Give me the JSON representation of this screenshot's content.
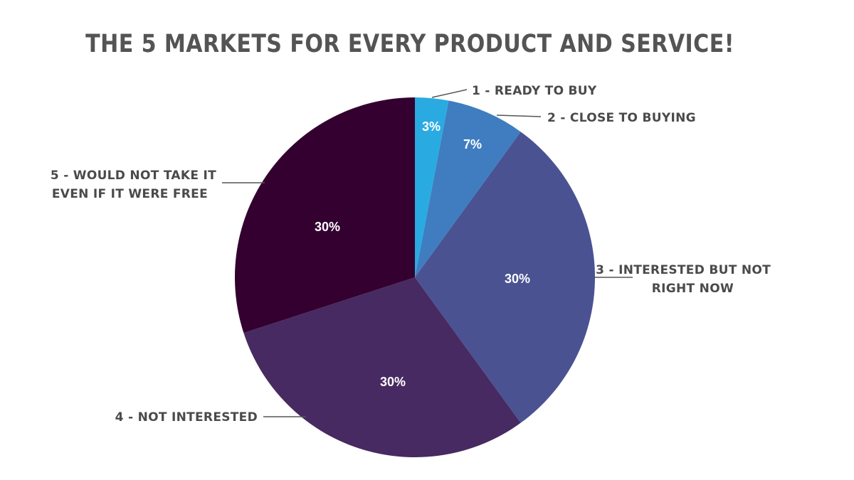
{
  "chart_data": {
    "type": "pie",
    "title": "THE 5 MARKETS FOR EVERY PRODUCT AND SERVICE!",
    "slices": [
      {
        "label": "1 - READY TO BUY",
        "lines": [
          "1 - READY TO BUY"
        ],
        "value": 3,
        "value_label": "3%",
        "color": "#29abe2"
      },
      {
        "label": "2 - CLOSE TO BUYING",
        "lines": [
          "2 - CLOSE TO BUYING"
        ],
        "value": 7,
        "value_label": "7%",
        "color": "#3f7dc0"
      },
      {
        "label": "3 - INTERESTED BUT NOT RIGHT NOW",
        "lines": [
          "3 - INTERESTED BUT NOT",
          "RIGHT NOW"
        ],
        "value": 30,
        "value_label": "30%",
        "color": "#4a5292"
      },
      {
        "label": "4 - NOT INTERESTED",
        "lines": [
          "4 - NOT INTERESTED"
        ],
        "value": 30,
        "value_label": "30%",
        "color": "#472a61"
      },
      {
        "label": "5 - WOULD NOT TAKE IT EVEN IF IT WERE FREE",
        "lines": [
          "5 - WOULD NOT TAKE IT",
          "EVEN IF IT WERE FREE"
        ],
        "value": 30,
        "value_label": "30%",
        "color": "#33002f"
      }
    ],
    "start_angle": "12 o'clock",
    "direction": "clockwise",
    "legend": "none (callout labels with leader lines)"
  }
}
